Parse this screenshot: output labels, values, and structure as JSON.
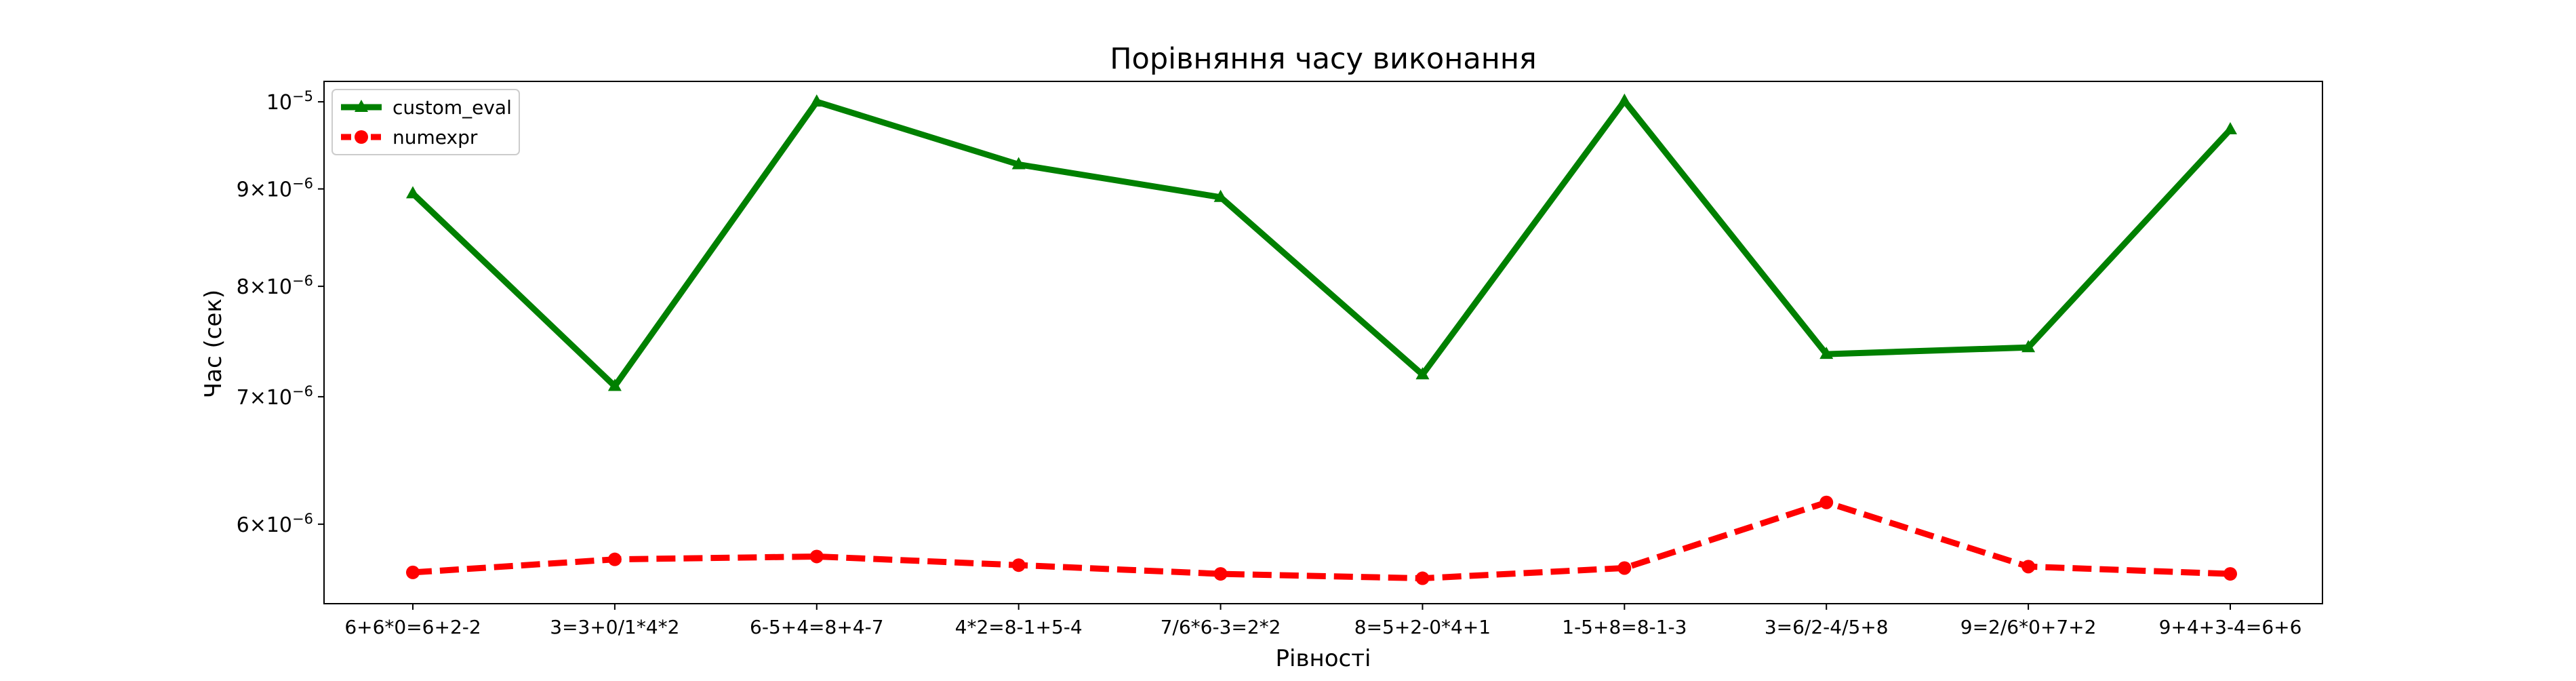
{
  "chart_data": {
    "type": "line",
    "title": "Порівняння часу виконання",
    "xlabel": "Рівності",
    "ylabel": "Час (сек)",
    "yscale": "log",
    "ylim": [
      5.45e-06,
      1.025e-05
    ],
    "grid": false,
    "legend_position": "top-left",
    "categories": [
      "6+6*0=6+2-2",
      "3=3+0/1*4*2",
      "6-5+4=8+4-7",
      "4*2=8-1+5-4",
      "7/6*6-3=2*2",
      "8=5+2-0*4+1",
      "1-5+8=8-1-3",
      "3=6/2-4/5+8",
      "9=2/6*0+7+2",
      "9+4+3-4=6+6"
    ],
    "y_ticks": [
      {
        "value": 6e-06,
        "mantissa": "6",
        "base": "10",
        "exp": "−6"
      },
      {
        "value": 7e-06,
        "mantissa": "7",
        "base": "10",
        "exp": "−6"
      },
      {
        "value": 8e-06,
        "mantissa": "8",
        "base": "10",
        "exp": "−6"
      },
      {
        "value": 9e-06,
        "mantissa": "9",
        "base": "10",
        "exp": "−6"
      },
      {
        "value": 1e-05,
        "mantissa": "",
        "base": "10",
        "exp": "−5"
      }
    ],
    "series": [
      {
        "name": "custom_eval",
        "color": "#008000",
        "marker": "triangle",
        "line_style": "solid",
        "values": [
          8.95e-06,
          7.09e-06,
          1e-05,
          9.27e-06,
          8.91e-06,
          7.19e-06,
          1.001e-05,
          7.37e-06,
          7.43e-06,
          9.67e-06
        ]
      },
      {
        "name": "numexpr",
        "color": "#ff0000",
        "marker": "circle",
        "line_style": "dashed",
        "values": [
          5.66e-06,
          5.75e-06,
          5.77e-06,
          5.71e-06,
          5.65e-06,
          5.62e-06,
          5.69e-06,
          6.16e-06,
          5.7e-06,
          5.65e-06
        ]
      }
    ]
  }
}
